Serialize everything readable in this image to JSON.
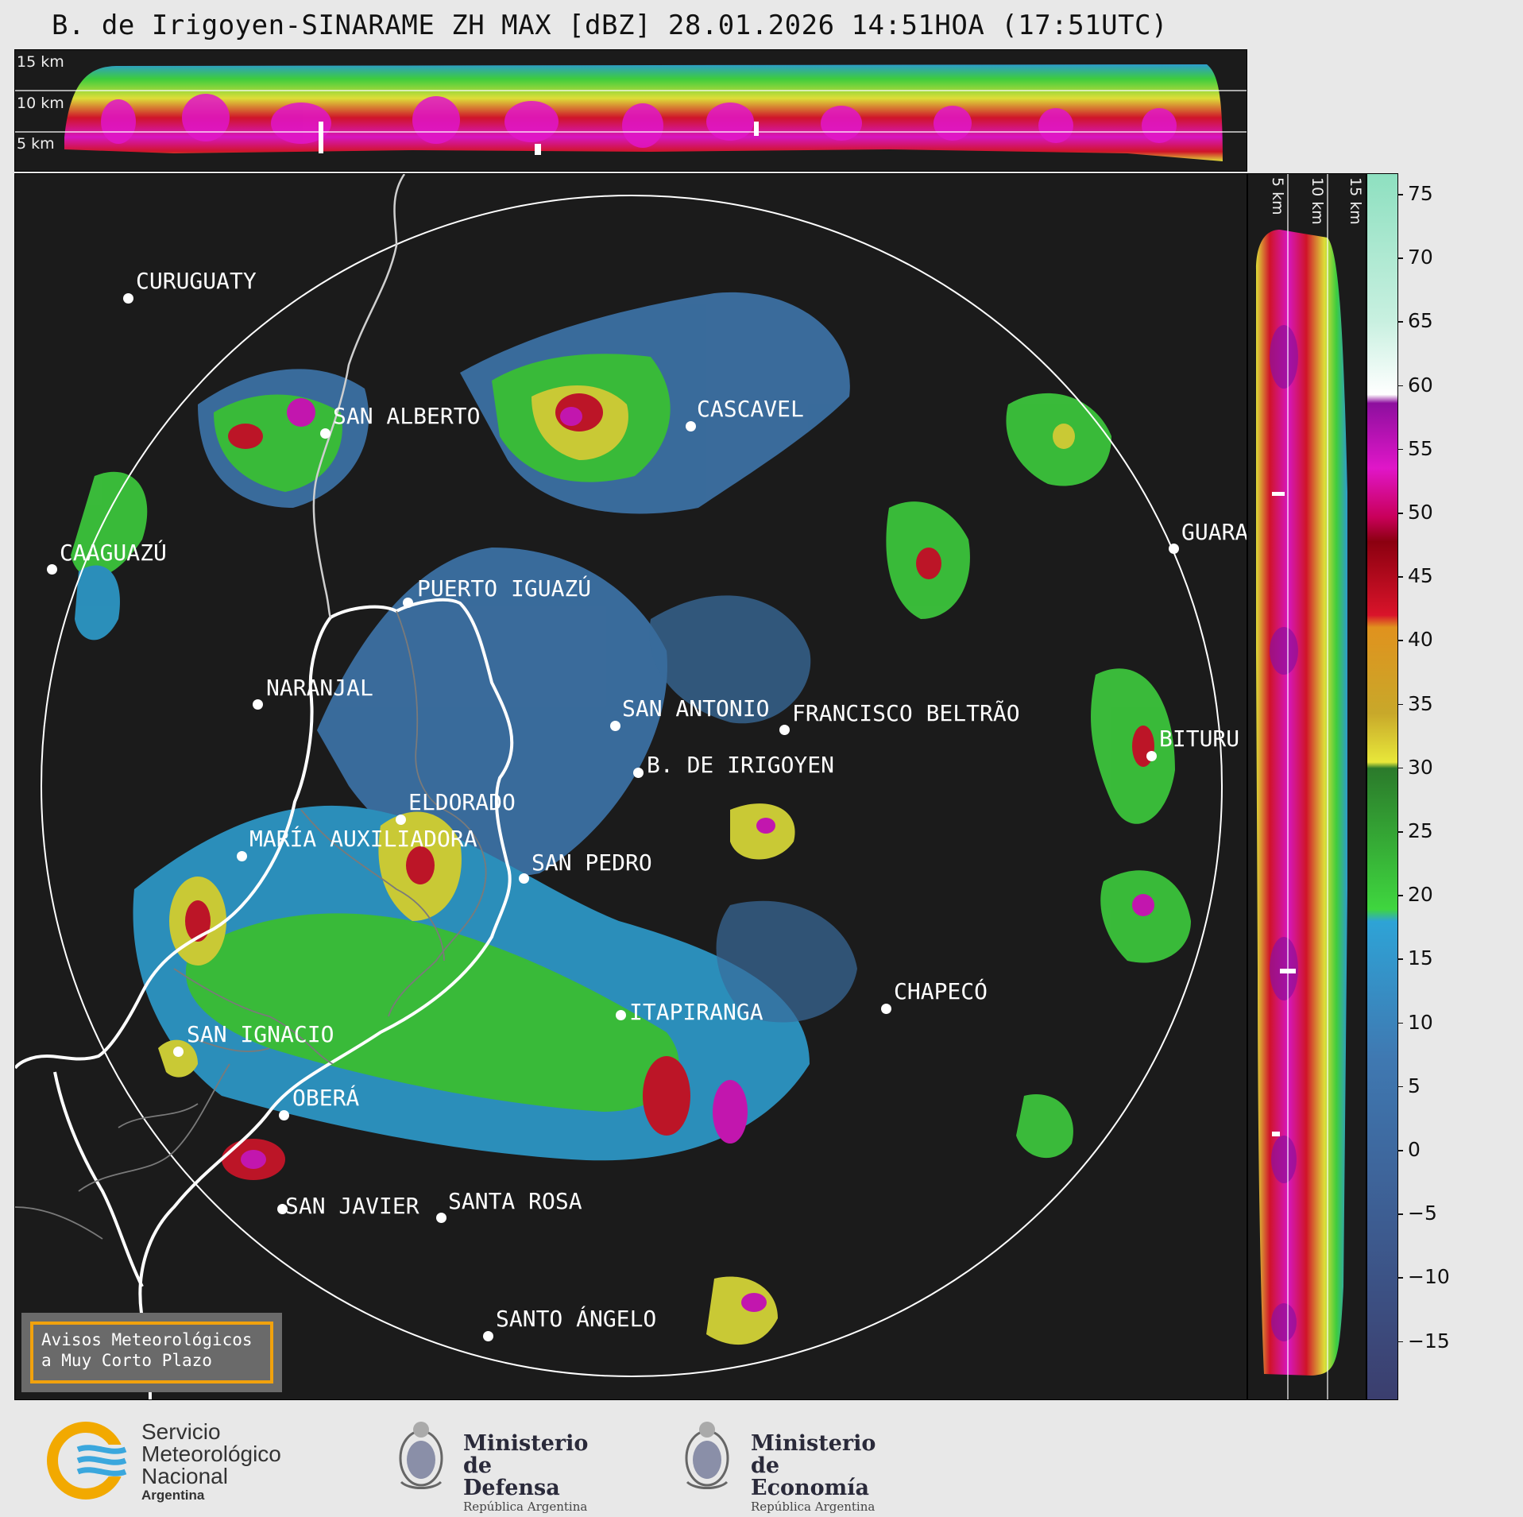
{
  "title": "B. de Irigoyen-SINARAME ZH MAX [dBZ] 28.01.2026 14:51HOA (17:51UTC)",
  "altitude_labels": {
    "h15": "15 km",
    "h10": "10 km",
    "h5": "5 km"
  },
  "colorbar": {
    "ticks": [
      "75",
      "70",
      "65",
      "60",
      "55",
      "50",
      "45",
      "40",
      "35",
      "30",
      "25",
      "20",
      "15",
      "10",
      "5",
      "0",
      "−5",
      "−10",
      "−15"
    ],
    "colors": {
      "deep_blue": "#3b3e6e",
      "blue": "#3f79b2",
      "cyan": "#2ea3d6",
      "green": "#3fd63f",
      "dark_green": "#2b7a2b",
      "yellow": "#e8e83a",
      "orange": "#e0921e",
      "red": "#d9142a",
      "dark_red": "#8b0010",
      "magenta": "#e016c8",
      "purple": "#8d0f9e",
      "white": "#ffffff",
      "mint": "#8ee0c0"
    }
  },
  "cities": [
    {
      "name": "CURUGUATY"
    },
    {
      "name": "SAN ALBERTO"
    },
    {
      "name": "CAAGUAZÚ"
    },
    {
      "name": "CASCAVEL"
    },
    {
      "name": "GUARA"
    },
    {
      "name": "PUERTO IGUAZÚ"
    },
    {
      "name": "NARANJAL"
    },
    {
      "name": "SAN ANTONIO"
    },
    {
      "name": "FRANCISCO BELTRÃO"
    },
    {
      "name": "BITURU"
    },
    {
      "name": "B. DE IRIGOYEN"
    },
    {
      "name": "ELDORADO"
    },
    {
      "name": "MARÍA AUXILIADORA"
    },
    {
      "name": "SAN PEDRO"
    },
    {
      "name": "CHAPECÓ"
    },
    {
      "name": "ITAPIRANGA"
    },
    {
      "name": "SAN IGNACIO"
    },
    {
      "name": "OBERÁ"
    },
    {
      "name": "SAN JAVIER"
    },
    {
      "name": "SANTA ROSA"
    },
    {
      "name": "SANTO ÁNGELO"
    }
  ],
  "notice": {
    "line1": "Avisos Meteorológicos",
    "line2": "a Muy Corto Plazo"
  },
  "logos": {
    "smn": {
      "line1": "Servicio",
      "line2": "Meteorológico",
      "line3": "Nacional",
      "line4": "Argentina"
    },
    "defensa": {
      "line1": "Ministerio",
      "line2": "de Defensa",
      "sub": "República Argentina"
    },
    "economia": {
      "line1": "Ministerio",
      "line2": "de Economía",
      "sub": "República Argentina"
    }
  }
}
